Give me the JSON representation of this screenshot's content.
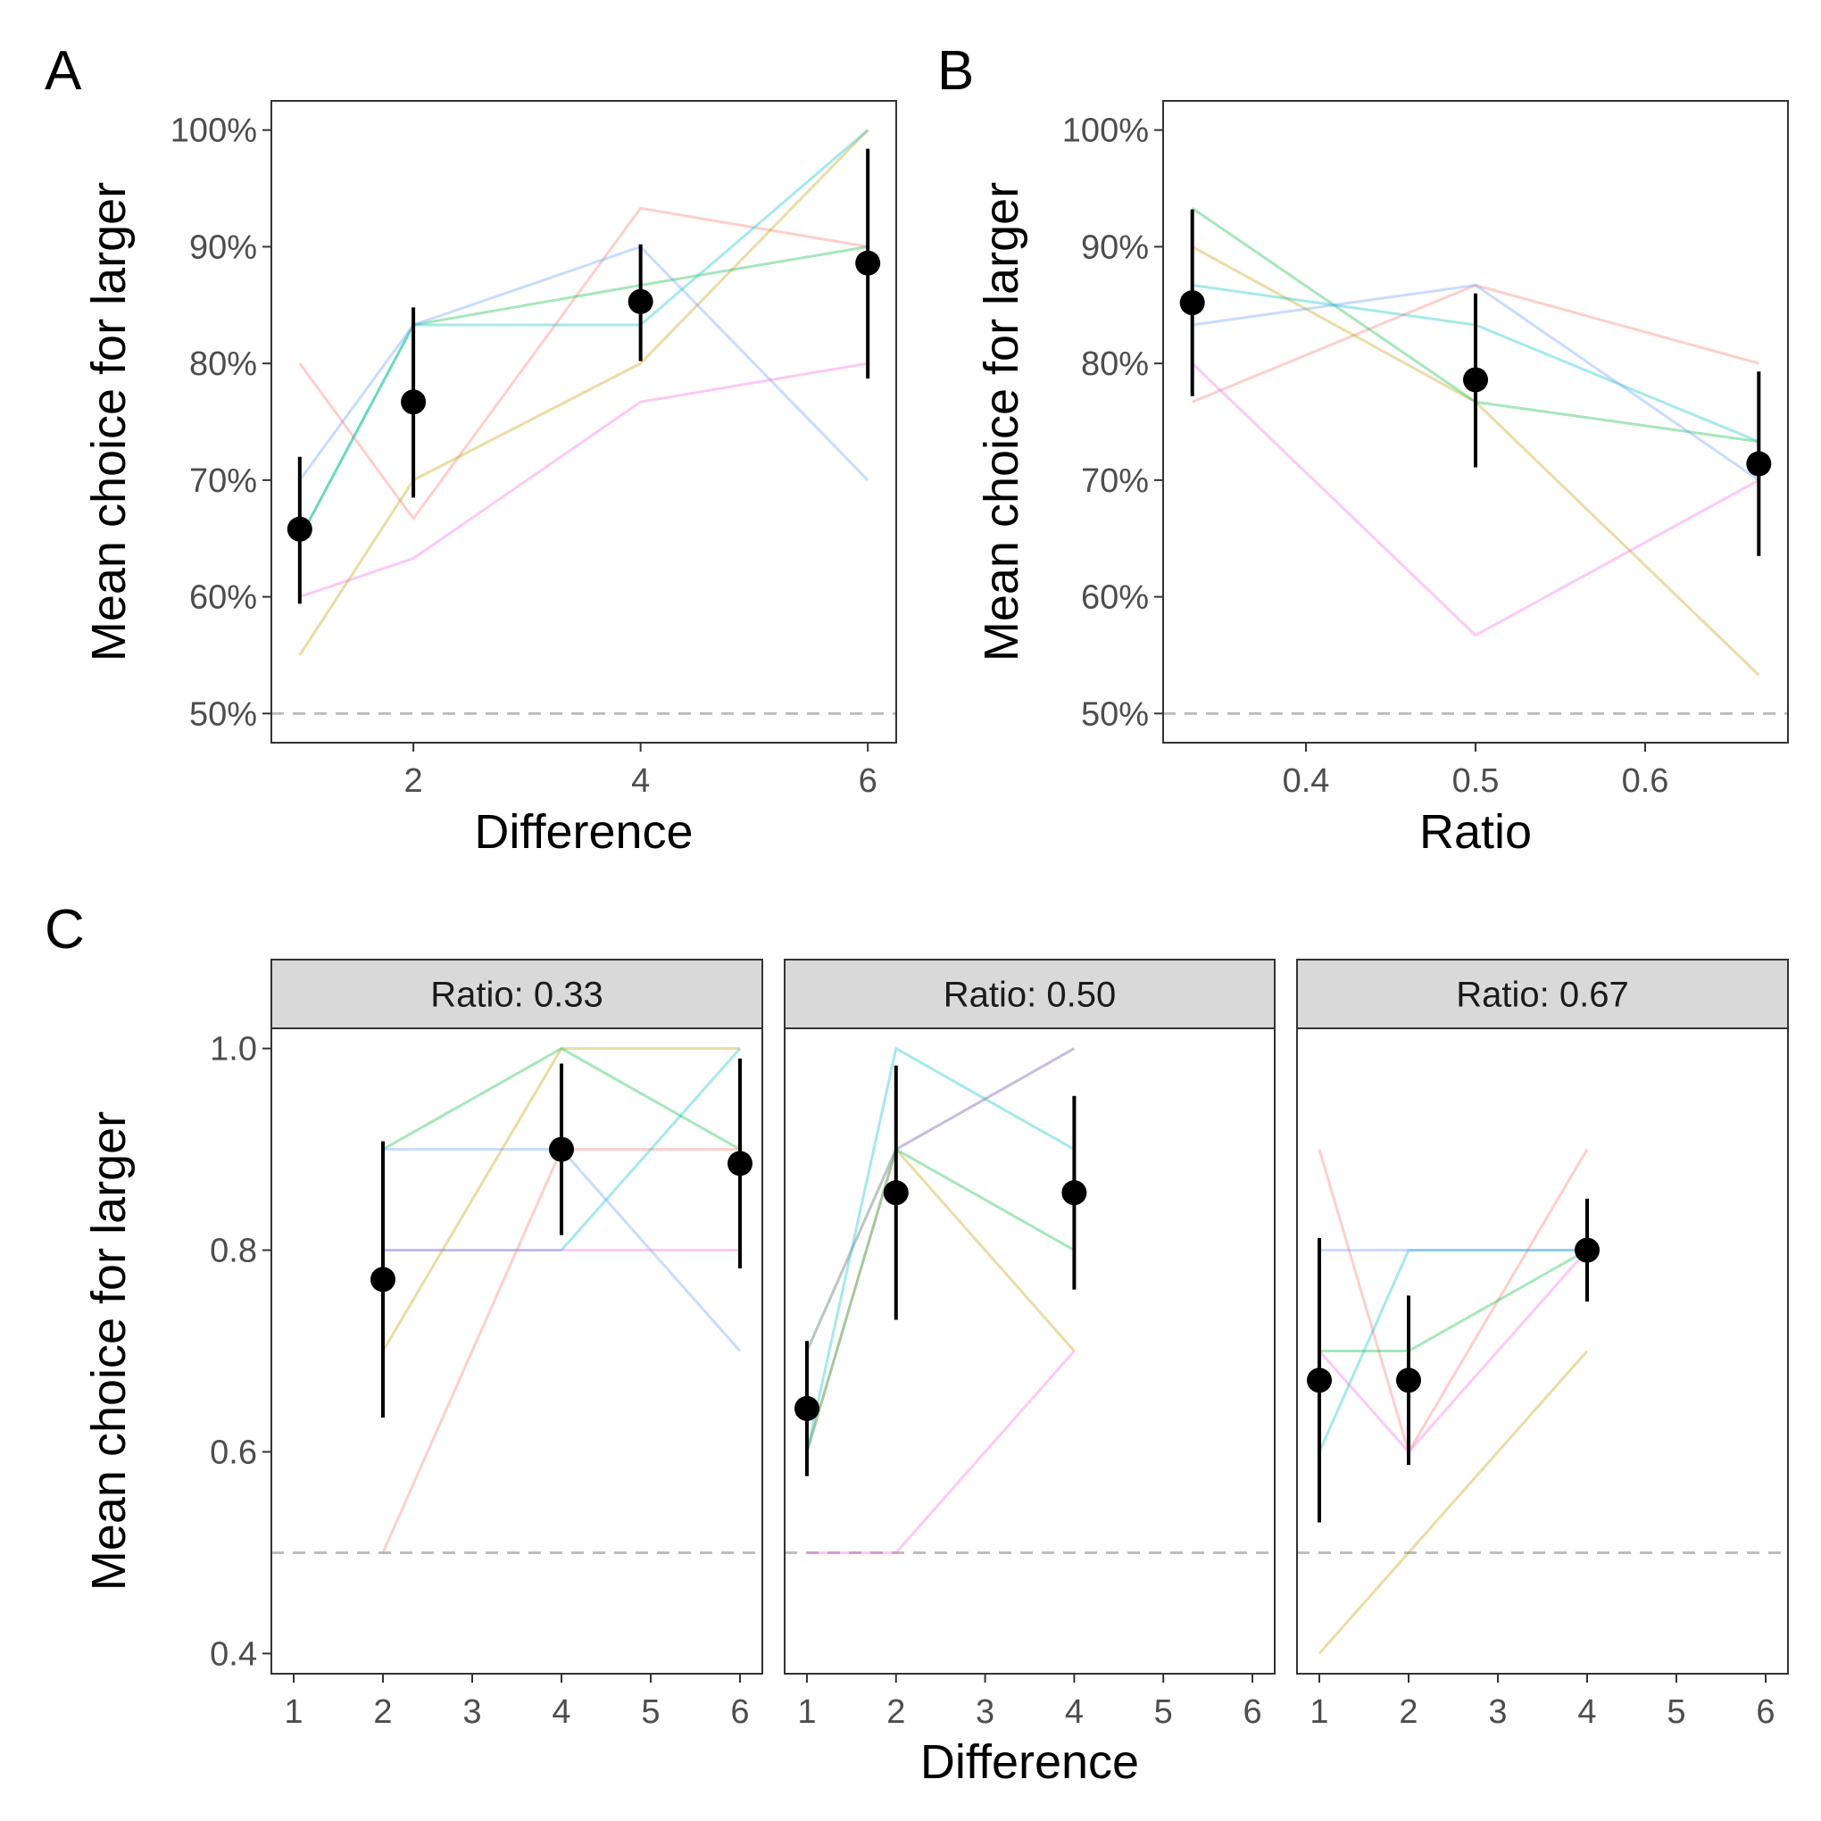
{
  "chart_data": [
    {
      "panel": "A",
      "type": "line",
      "xlabel": "Difference",
      "ylabel": "Mean choice for larger",
      "xlim": [
        0.75,
        6.25
      ],
      "ylim": [
        0.475,
        1.025
      ],
      "x_ticks": [
        2,
        4,
        6
      ],
      "x_tick_labels": [
        "2",
        "4",
        "6"
      ],
      "y_ticks": [
        0.5,
        0.6,
        0.7,
        0.8,
        0.9,
        1.0
      ],
      "y_tick_labels": [
        "50%",
        "60%",
        "70%",
        "80%",
        "90%",
        "100%"
      ],
      "chance_line": 0.5,
      "grid": false,
      "x": [
        1,
        2,
        4,
        6
      ],
      "series": [
        {
          "color": "#f8766d",
          "values": [
            0.8,
            0.667,
            0.933,
            0.9
          ]
        },
        {
          "color": "#c49a00",
          "values": [
            0.55,
            0.7,
            0.8,
            1.0
          ]
        },
        {
          "color": "#00ba38",
          "values": [
            0.65,
            0.833,
            0.867,
            0.9
          ]
        },
        {
          "color": "#00bfc4",
          "values": [
            0.65,
            0.833,
            0.833,
            1.0
          ]
        },
        {
          "color": "#619cff",
          "values": [
            0.7,
            0.833,
            0.9,
            0.7
          ]
        },
        {
          "color": "#f564e3",
          "values": [
            0.6,
            0.633,
            0.767,
            0.8
          ]
        }
      ],
      "mean": {
        "values": [
          0.658,
          0.767,
          0.853,
          0.886
        ],
        "lower": [
          0.594,
          0.685,
          0.802,
          0.787
        ],
        "upper": [
          0.72,
          0.848,
          0.902,
          0.984
        ]
      }
    },
    {
      "panel": "B",
      "type": "line",
      "xlabel": "Ratio",
      "ylabel": "Mean choice for larger",
      "xlim": [
        0.3158,
        0.6842
      ],
      "ylim": [
        0.475,
        1.025
      ],
      "x_ticks": [
        0.4,
        0.5,
        0.6
      ],
      "x_tick_labels": [
        "0.4",
        "0.5",
        "0.6"
      ],
      "y_ticks": [
        0.5,
        0.6,
        0.7,
        0.8,
        0.9,
        1.0
      ],
      "y_tick_labels": [
        "50%",
        "60%",
        "70%",
        "80%",
        "90%",
        "100%"
      ],
      "chance_line": 0.5,
      "grid": false,
      "x": [
        0.333,
        0.5,
        0.667
      ],
      "series": [
        {
          "color": "#f8766d",
          "values": [
            0.767,
            0.867,
            0.8
          ]
        },
        {
          "color": "#c49a00",
          "values": [
            0.9,
            0.767,
            0.533
          ]
        },
        {
          "color": "#00ba38",
          "values": [
            0.933,
            0.767,
            0.733
          ]
        },
        {
          "color": "#00bfc4",
          "values": [
            0.867,
            0.833,
            0.733
          ]
        },
        {
          "color": "#619cff",
          "values": [
            0.833,
            0.867,
            0.7
          ]
        },
        {
          "color": "#f564e3",
          "values": [
            0.8,
            0.567,
            0.7
          ]
        }
      ],
      "mean": {
        "values": [
          0.852,
          0.786,
          0.714
        ],
        "lower": [
          0.772,
          0.711,
          0.635
        ],
        "upper": [
          0.932,
          0.86,
          0.793
        ]
      }
    },
    {
      "panel": "C",
      "type": "line",
      "xlabel": "Difference",
      "ylabel": "Mean choice for larger",
      "xlim": [
        0.75,
        6.25
      ],
      "ylim": [
        0.38,
        1.02
      ],
      "x_ticks": [
        1,
        2,
        3,
        4,
        5,
        6
      ],
      "x_tick_labels": [
        "1",
        "2",
        "3",
        "4",
        "5",
        "6"
      ],
      "y_ticks": [
        0.4,
        0.6,
        0.8,
        1.0
      ],
      "y_tick_labels": [
        "0.4",
        "0.6",
        "0.8",
        "1.0"
      ],
      "chance_line": 0.5,
      "grid": false,
      "facets": [
        {
          "strip": "Ratio: 0.33",
          "x": [
            2,
            4,
            6
          ],
          "series": [
            {
              "color": "#f8766d",
              "values": [
                0.5,
                0.9,
                0.9
              ]
            },
            {
              "color": "#c49a00",
              "values": [
                0.7,
                1.0,
                1.0
              ]
            },
            {
              "color": "#00ba38",
              "values": [
                0.9,
                1.0,
                0.9
              ]
            },
            {
              "color": "#00bfc4",
              "values": [
                0.8,
                0.8,
                1.0
              ]
            },
            {
              "color": "#619cff",
              "values": [
                0.9,
                0.9,
                0.7
              ]
            },
            {
              "color": "#f564e3",
              "values": [
                0.8,
                0.8,
                0.8
              ]
            }
          ],
          "mean": {
            "values": [
              0.771,
              0.9,
              0.886
            ],
            "lower": [
              0.634,
              0.815,
              0.782
            ],
            "upper": [
              0.908,
              0.985,
              0.99
            ]
          }
        },
        {
          "strip": "Ratio: 0.50",
          "x": [
            1,
            2,
            4
          ],
          "series": [
            {
              "color": "#f8766d",
              "values": [
                0.6,
                0.9,
                1.0
              ]
            },
            {
              "color": "#c49a00",
              "values": [
                0.7,
                0.9,
                0.7
              ]
            },
            {
              "color": "#00ba38",
              "values": [
                0.6,
                0.9,
                0.8
              ]
            },
            {
              "color": "#00bfc4",
              "values": [
                0.6,
                1.0,
                0.9
              ]
            },
            {
              "color": "#619cff",
              "values": [
                0.7,
                0.9,
                1.0
              ]
            },
            {
              "color": "#f564e3",
              "values": [
                0.5,
                0.5,
                0.7
              ]
            }
          ],
          "mean": {
            "values": [
              0.643,
              0.857,
              0.857
            ],
            "lower": [
              0.576,
              0.731,
              0.761
            ],
            "upper": [
              0.71,
              0.983,
              0.953
            ]
          }
        },
        {
          "strip": "Ratio: 0.67",
          "x": [
            1,
            2,
            4
          ],
          "series": [
            {
              "color": "#f8766d",
              "values": [
                0.9,
                0.6,
                0.9
              ]
            },
            {
              "color": "#c49a00",
              "values": [
                0.4,
                0.5,
                0.7
              ]
            },
            {
              "color": "#00ba38",
              "values": [
                0.7,
                0.7,
                0.8
              ]
            },
            {
              "color": "#00bfc4",
              "values": [
                0.6,
                0.8,
                0.8
              ]
            },
            {
              "color": "#619cff",
              "values": [
                0.8,
                0.8,
                0.8
              ]
            },
            {
              "color": "#f564e3",
              "values": [
                0.7,
                0.6,
                0.8
              ]
            }
          ],
          "mean": {
            "values": [
              0.671,
              0.671,
              0.8
            ],
            "lower": [
              0.53,
              0.587,
              0.749
            ],
            "upper": [
              0.812,
              0.755,
              0.851
            ]
          }
        }
      ]
    }
  ]
}
